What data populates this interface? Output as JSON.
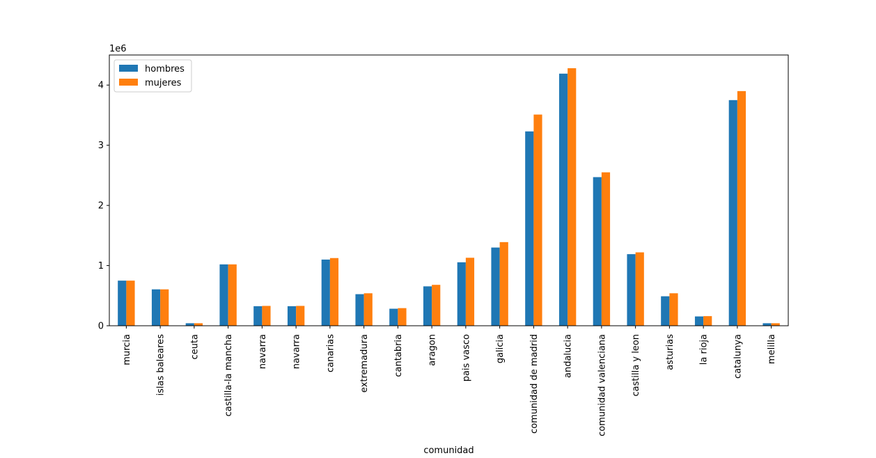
{
  "chart_data": {
    "type": "bar",
    "categories": [
      "murcia",
      "islas baleares",
      "ceuta",
      "castilla-la mancha",
      "navarra",
      "navarra",
      "canarias",
      "extremadura",
      "cantabria",
      "aragon",
      "pais vasco",
      "galicia",
      "comunidad de madrid",
      "andalucia",
      "comunidad valenciana",
      "castilla y leon",
      "asturias",
      "la rioja",
      "catalunya",
      "melilla"
    ],
    "series": [
      {
        "name": "hombres",
        "color": "#1f77b4",
        "values": [
          750000,
          605000,
          42000,
          1020000,
          325000,
          325000,
          1100000,
          525000,
          283000,
          655000,
          1055000,
          1300000,
          3230000,
          4190000,
          2470000,
          1190000,
          490000,
          155000,
          3750000,
          42000
        ]
      },
      {
        "name": "mujeres",
        "color": "#ff7f0e",
        "values": [
          750000,
          605000,
          42000,
          1020000,
          330000,
          330000,
          1125000,
          540000,
          293000,
          680000,
          1130000,
          1390000,
          3510000,
          4280000,
          2550000,
          1220000,
          540000,
          160000,
          3900000,
          42000
        ]
      }
    ],
    "xlabel": "comunidad",
    "ylabel": "",
    "yticks": [
      0,
      1000000,
      2000000,
      3000000,
      4000000
    ],
    "ytick_labels": [
      "0",
      "1",
      "2",
      "3",
      "4"
    ],
    "offset_text": "1e6",
    "ylim": [
      0,
      4500000
    ],
    "legend_position": "top-left",
    "grid": false
  }
}
